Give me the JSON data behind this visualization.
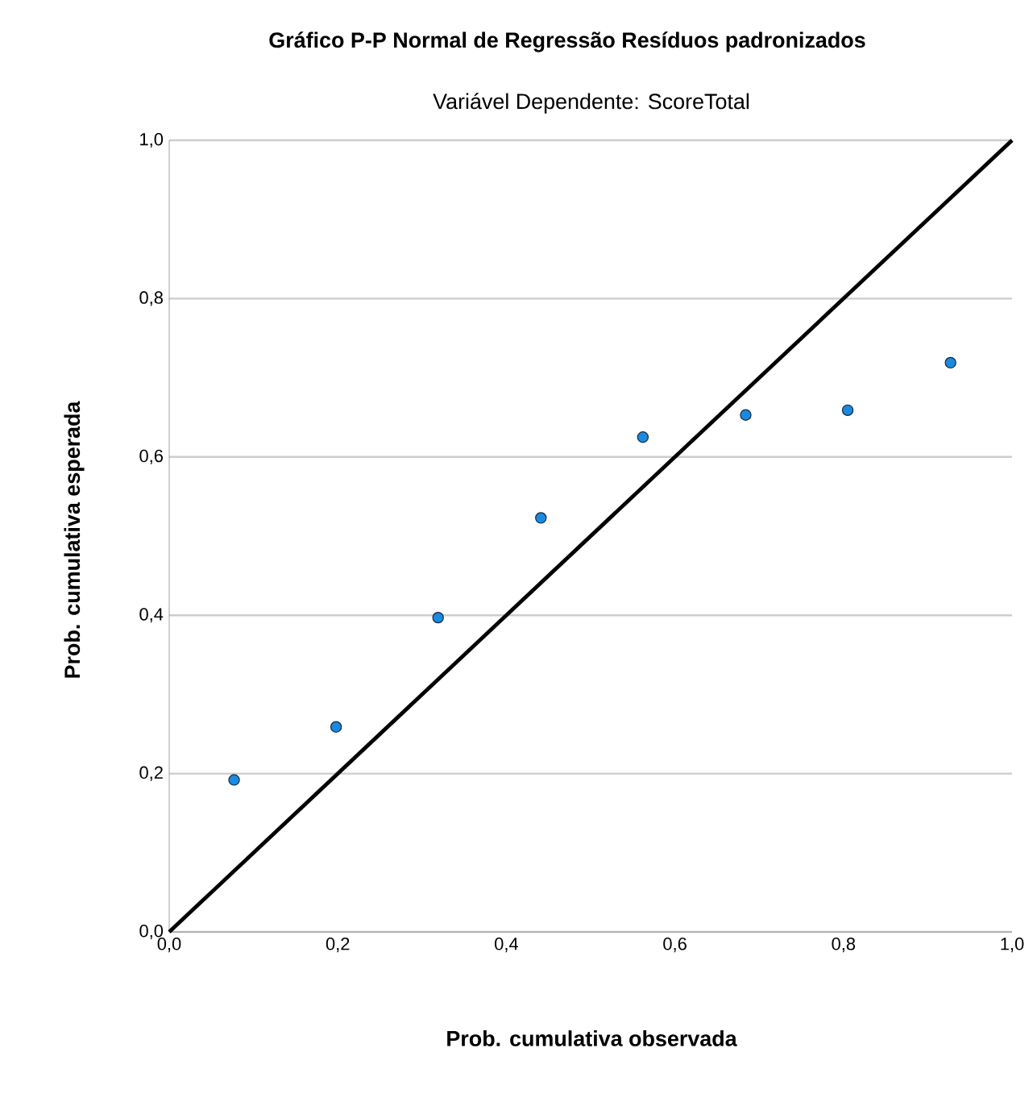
{
  "chart_data": {
    "type": "scatter",
    "title": "Gráfico P-P Normal de Regressão Resíduos padronizados",
    "subtitle": "Variável Dependente: ScoreTotal",
    "xlabel": "Prob. cumulativa observada",
    "ylabel": "Prob. cumulativa esperada",
    "xlim": [
      0,
      1
    ],
    "ylim": [
      0,
      1
    ],
    "xticks": [
      {
        "value": 0,
        "label": "0,0"
      },
      {
        "value": 0.2,
        "label": "0,2"
      },
      {
        "value": 0.4,
        "label": "0,4"
      },
      {
        "value": 0.6,
        "label": "0,6"
      },
      {
        "value": 0.8,
        "label": "0,8"
      },
      {
        "value": 1,
        "label": "1,0"
      }
    ],
    "yticks": [
      {
        "value": 0,
        "label": "0,0"
      },
      {
        "value": 0.2,
        "label": "0,2"
      },
      {
        "value": 0.4,
        "label": "0,4"
      },
      {
        "value": 0.6,
        "label": "0,6"
      },
      {
        "value": 0.8,
        "label": "0,8"
      },
      {
        "value": 1,
        "label": "1,0"
      }
    ],
    "grid": "y",
    "series": [
      {
        "marker": "circle",
        "color": "#1a8ae0",
        "x": [
          0.077,
          0.198,
          0.319,
          0.441,
          0.562,
          0.684,
          0.805,
          0.927
        ],
        "values": [
          0.192,
          0.259,
          0.397,
          0.523,
          0.625,
          0.653,
          0.659,
          0.719
        ]
      },
      {
        "type": "line",
        "marker": "none",
        "color": "#000000",
        "x": [
          0,
          1
        ],
        "values": [
          0,
          1
        ]
      }
    ]
  }
}
